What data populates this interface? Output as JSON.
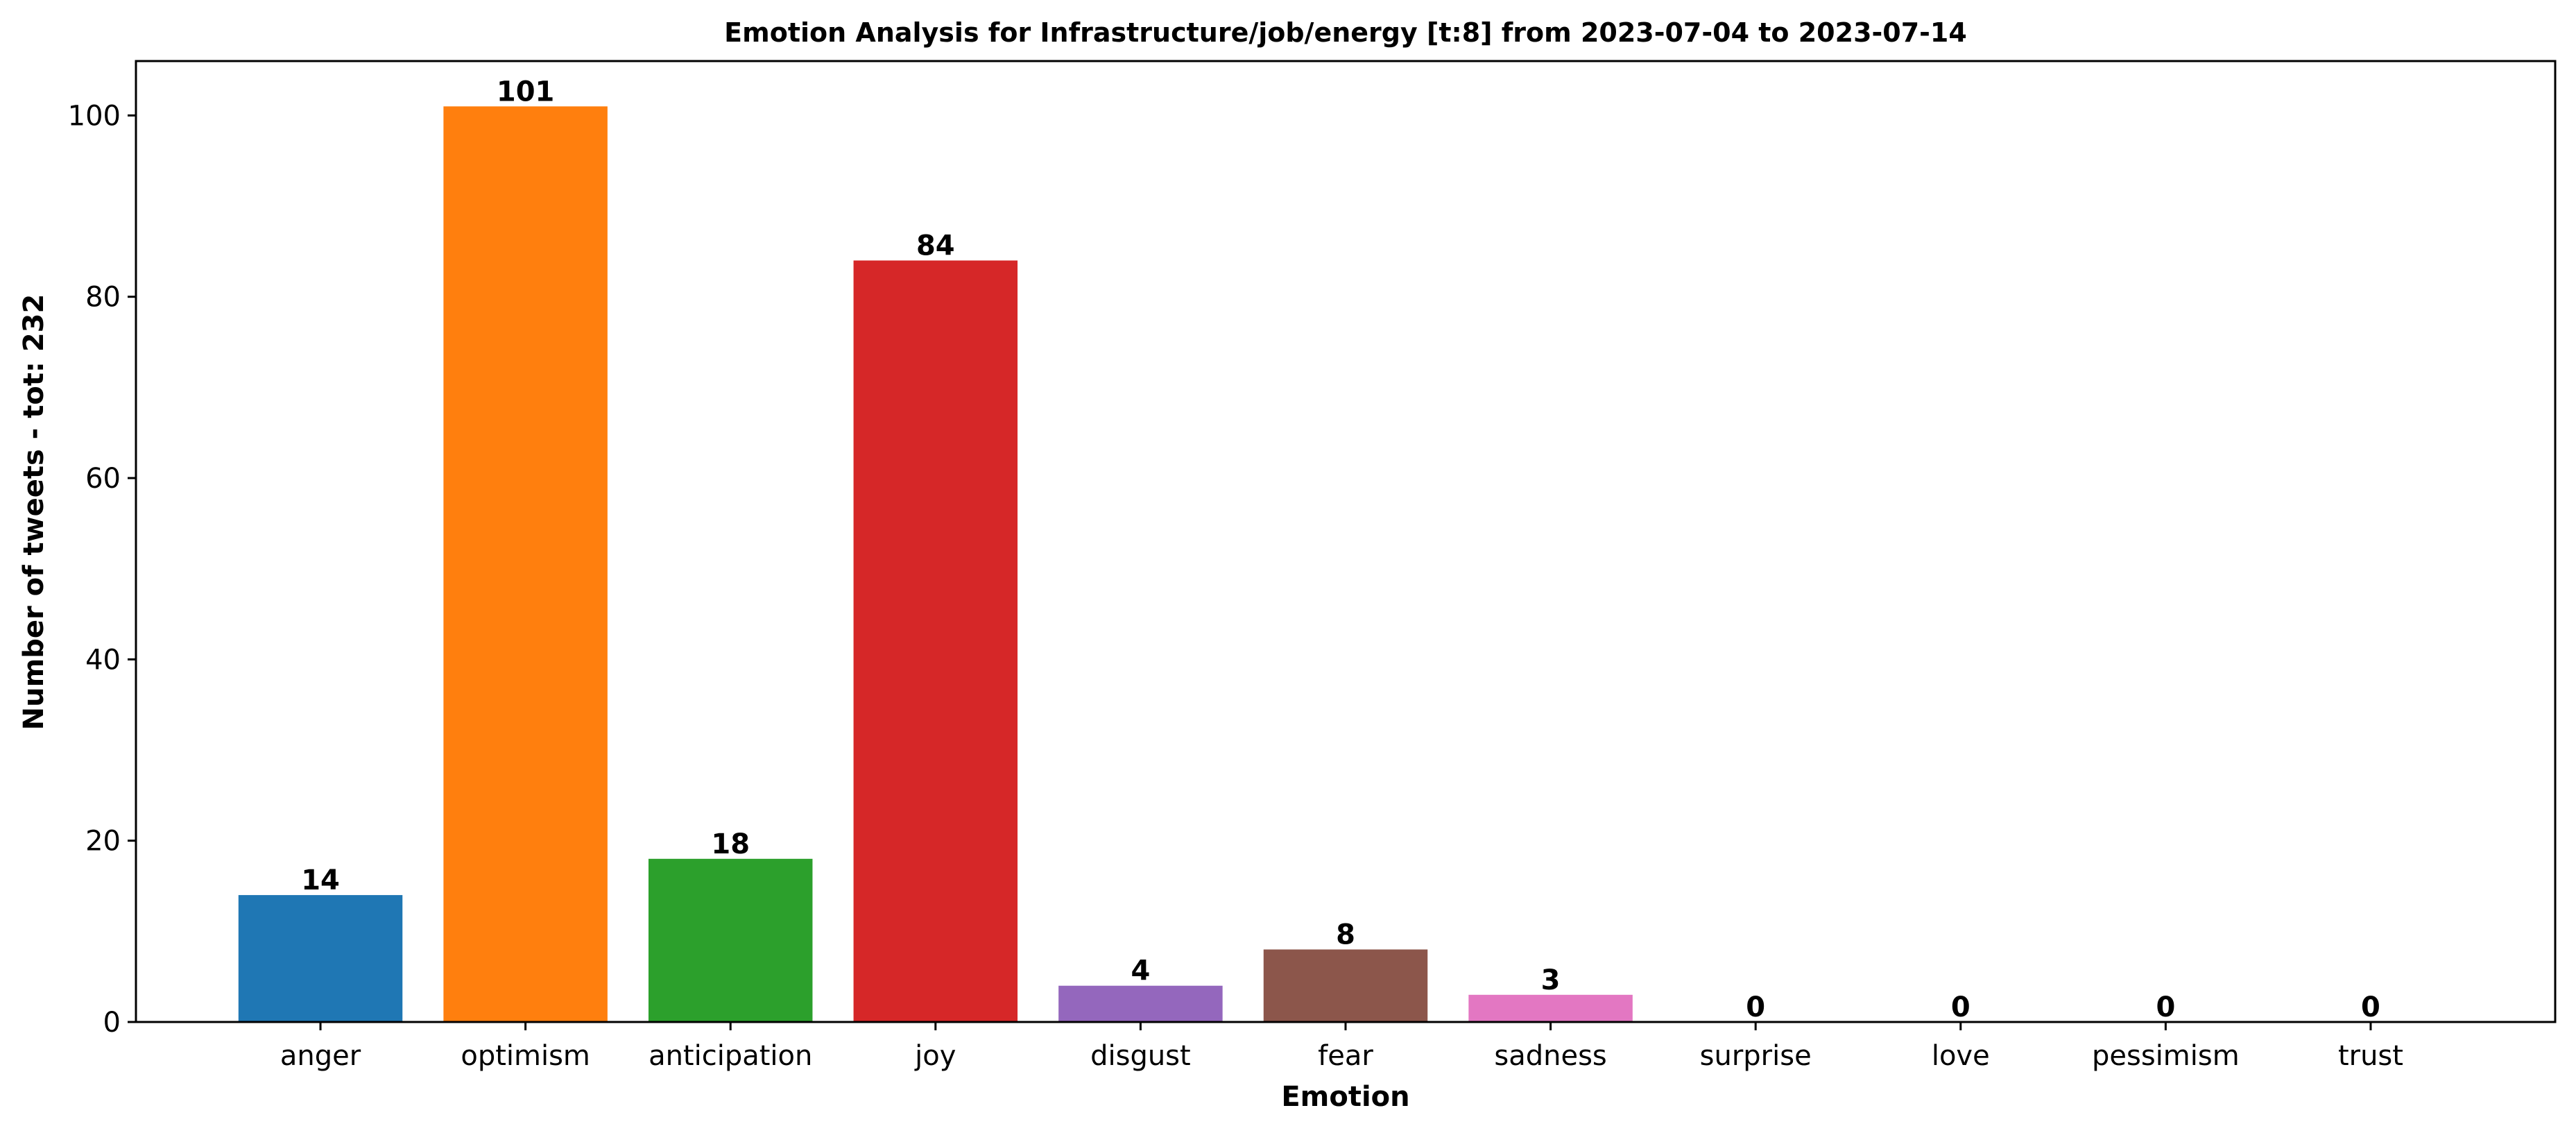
{
  "chart_data": {
    "type": "bar",
    "title": "Emotion Analysis for Infrastructure/job/energy [t:8] from 2023-07-04 to 2023-07-14",
    "xlabel": "Emotion",
    "ylabel": "Number of tweets - tot: 232",
    "categories": [
      "anger",
      "optimism",
      "anticipation",
      "joy",
      "disgust",
      "fear",
      "sadness",
      "surprise",
      "love",
      "pessimism",
      "trust"
    ],
    "values": [
      14,
      101,
      18,
      84,
      4,
      8,
      3,
      0,
      0,
      0,
      0
    ],
    "colors": [
      "#1f77b4",
      "#ff7f0e",
      "#2ca02c",
      "#d62728",
      "#9467bd",
      "#8c564b",
      "#e377c2",
      "#7f7f7f",
      "#bcbd22",
      "#17becf",
      "#1f77b4"
    ],
    "ylim": [
      0,
      106
    ],
    "yticks": [
      0,
      20,
      40,
      60,
      80,
      100
    ],
    "grid": false,
    "legend": false,
    "show_value_labels": true
  }
}
